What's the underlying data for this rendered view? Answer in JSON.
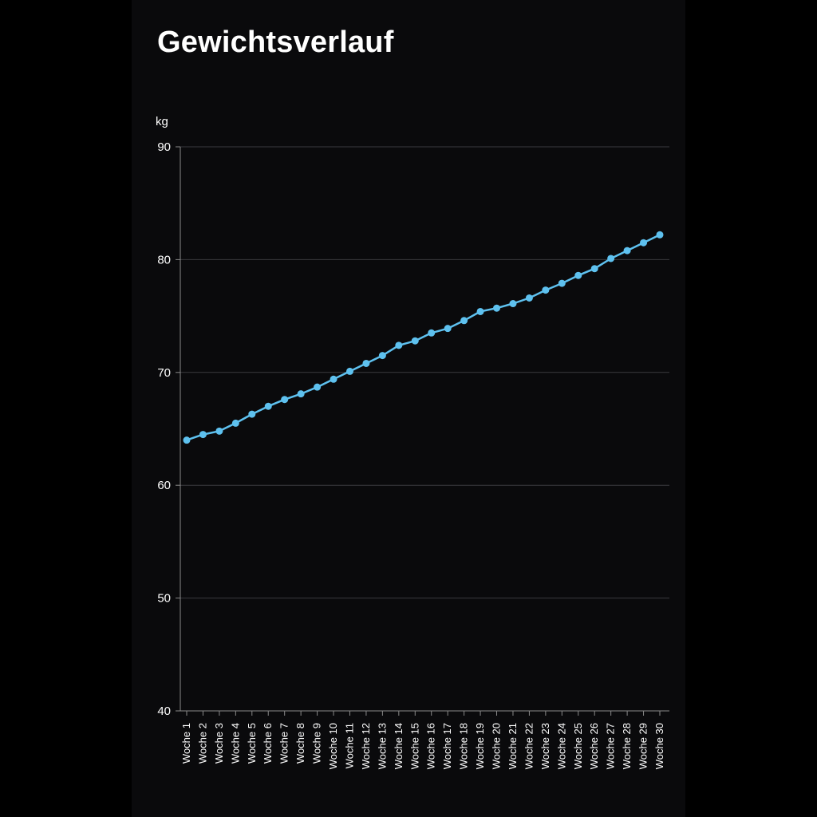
{
  "screen": {
    "title": "Gewichtsverlauf"
  },
  "colors": {
    "background": "#0a0a0c",
    "line": "#5ec1ef",
    "grid": "#3a3a3f",
    "axis": "#8a8a8a",
    "text": "#ffffff"
  },
  "chart_data": {
    "type": "line",
    "title": "Gewichtsverlauf",
    "xlabel": "",
    "ylabel": "kg",
    "ylim": [
      40,
      90
    ],
    "yticks": [
      40,
      50,
      60,
      70,
      80,
      90
    ],
    "grid": true,
    "categories": [
      "Woche 1",
      "Woche 2",
      "Woche 3",
      "Woche 4",
      "Woche 5",
      "Woche 6",
      "Woche 7",
      "Woche 8",
      "Woche 9",
      "Woche 10",
      "Woche 11",
      "Woche 12",
      "Woche 13",
      "Woche 14",
      "Woche 15",
      "Woche 16",
      "Woche 17",
      "Woche 18",
      "Woche 19",
      "Woche 20",
      "Woche 21",
      "Woche 22",
      "Woche 23",
      "Woche 24",
      "Woche 25",
      "Woche 26",
      "Woche 27",
      "Woche 28",
      "Woche 29",
      "Woche 30"
    ],
    "series": [
      {
        "values": [
          64.0,
          64.5,
          64.8,
          65.5,
          66.3,
          67.0,
          67.6,
          68.1,
          68.7,
          69.4,
          70.1,
          70.8,
          71.5,
          72.4,
          72.8,
          73.5,
          73.9,
          74.6,
          75.4,
          75.7,
          76.1,
          76.6,
          77.3,
          77.9,
          78.6,
          79.2,
          80.1,
          80.8,
          81.5,
          82.2
        ]
      }
    ]
  }
}
